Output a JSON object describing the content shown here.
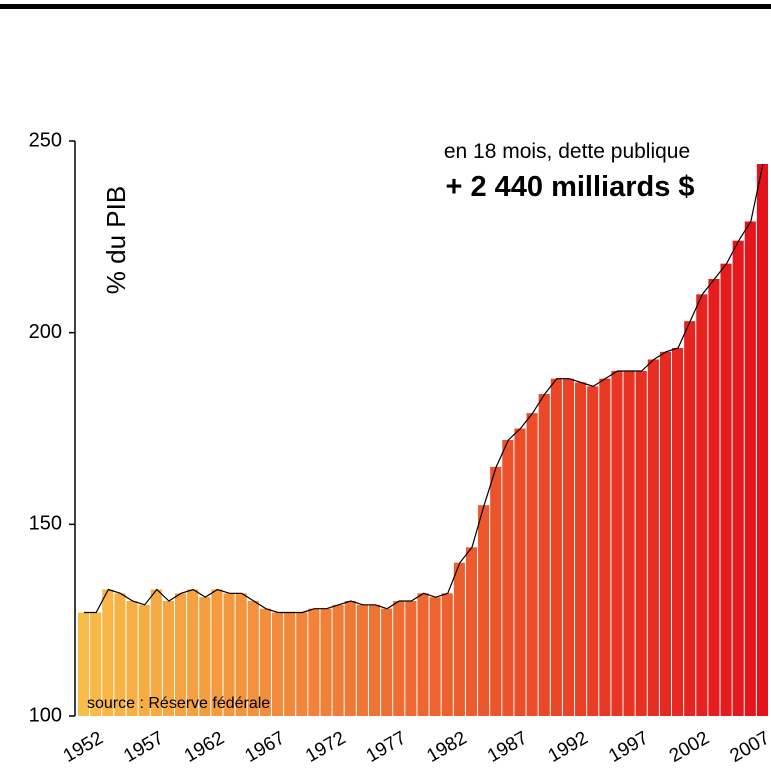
{
  "chart_data": {
    "type": "bar",
    "y_label": "% du PIB",
    "annotations": [
      "en 18 mois, dette publique",
      "+ 2 440 milliards $"
    ],
    "source": "source : Réserve fédérale",
    "x": [
      1952,
      1953,
      1954,
      1955,
      1956,
      1957,
      1958,
      1959,
      1960,
      1961,
      1962,
      1963,
      1964,
      1965,
      1966,
      1967,
      1968,
      1969,
      1970,
      1971,
      1972,
      1973,
      1974,
      1975,
      1976,
      1977,
      1978,
      1979,
      1980,
      1981,
      1982,
      1983,
      1984,
      1985,
      1986,
      1987,
      1988,
      1989,
      1990,
      1991,
      1992,
      1993,
      1994,
      1995,
      1996,
      1997,
      1998,
      1999,
      2000,
      2001,
      2002,
      2003,
      2004,
      2005,
      2006,
      2007,
      2008
    ],
    "values": [
      127,
      127,
      133,
      132,
      130,
      129,
      133,
      130,
      132,
      133,
      131,
      133,
      132,
      132,
      130,
      128,
      127,
      127,
      127,
      128,
      128,
      129,
      130,
      129,
      129,
      128,
      130,
      130,
      132,
      131,
      132,
      140,
      144,
      155,
      165,
      172,
      175,
      179,
      184,
      188,
      188,
      187,
      186,
      188,
      190,
      190,
      190,
      193,
      195,
      196,
      203,
      210,
      214,
      218,
      224,
      229,
      244
    ],
    "colors": [
      "#f8bc48",
      "#e4121a"
    ],
    "xlim": [
      1952,
      2009
    ],
    "xticks": [
      1952,
      1957,
      1962,
      1967,
      1972,
      1977,
      1982,
      1987,
      1992,
      1997,
      2002,
      2007
    ],
    "ylim": [
      100,
      250
    ],
    "yticks": [
      100,
      150,
      200,
      250
    ]
  }
}
